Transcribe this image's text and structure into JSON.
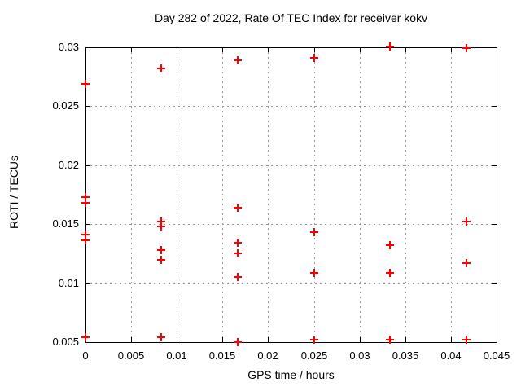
{
  "chart_data": {
    "type": "scatter",
    "title": "Day 282 of 2022, Rate Of TEC Index for receiver kokv",
    "xlabel": "GPS time / hours",
    "ylabel": "ROTI / TECUs",
    "xlim": [
      0,
      0.045
    ],
    "ylim": [
      0.005,
      0.03
    ],
    "grid": true,
    "legend": "none",
    "marker": "plus",
    "marker_color": "#ff0000",
    "grid_color": "#999999",
    "axis_color": "#000000",
    "background_color": "#ffffff",
    "x_ticks": [
      {
        "value": 0,
        "label": "0"
      },
      {
        "value": 0.005,
        "label": "0.005"
      },
      {
        "value": 0.01,
        "label": "0.01"
      },
      {
        "value": 0.015,
        "label": "0.015"
      },
      {
        "value": 0.02,
        "label": "0.02"
      },
      {
        "value": 0.025,
        "label": "0.025"
      },
      {
        "value": 0.03,
        "label": "0.03"
      },
      {
        "value": 0.035,
        "label": "0.035"
      },
      {
        "value": 0.04,
        "label": "0.04"
      },
      {
        "value": 0.045,
        "label": "0.045"
      }
    ],
    "y_ticks": [
      {
        "value": 0.005,
        "label": "0.005"
      },
      {
        "value": 0.01,
        "label": "0.01"
      },
      {
        "value": 0.015,
        "label": "0.015"
      },
      {
        "value": 0.02,
        "label": "0.02"
      },
      {
        "value": 0.025,
        "label": "0.025"
      },
      {
        "value": 0.03,
        "label": "0.03"
      }
    ],
    "series": [
      {
        "name": "ROTI",
        "points": [
          [
            0,
            0.0269
          ],
          [
            0,
            0.0173
          ],
          [
            0,
            0.0168
          ],
          [
            0,
            0.0141
          ],
          [
            0,
            0.0136
          ],
          [
            0,
            0.0054
          ],
          [
            0.00833,
            0.0282
          ],
          [
            0.00833,
            0.0152
          ],
          [
            0.00833,
            0.0148
          ],
          [
            0.00833,
            0.0128
          ],
          [
            0.00833,
            0.012
          ],
          [
            0.00833,
            0.0054
          ],
          [
            0.01667,
            0.0289
          ],
          [
            0.01667,
            0.0164
          ],
          [
            0.01667,
            0.0134
          ],
          [
            0.01667,
            0.0125
          ],
          [
            0.01667,
            0.0105
          ],
          [
            0.01667,
            0.005
          ],
          [
            0.025,
            0.0291
          ],
          [
            0.025,
            0.0143
          ],
          [
            0.025,
            0.0109
          ],
          [
            0.025,
            0.0052
          ],
          [
            0.03333,
            0.0301
          ],
          [
            0.03333,
            0.0132
          ],
          [
            0.03333,
            0.0109
          ],
          [
            0.03333,
            0.0052
          ],
          [
            0.04167,
            0.0299
          ],
          [
            0.04167,
            0.0152
          ],
          [
            0.04167,
            0.0117
          ],
          [
            0.04167,
            0.0052
          ]
        ]
      }
    ]
  }
}
